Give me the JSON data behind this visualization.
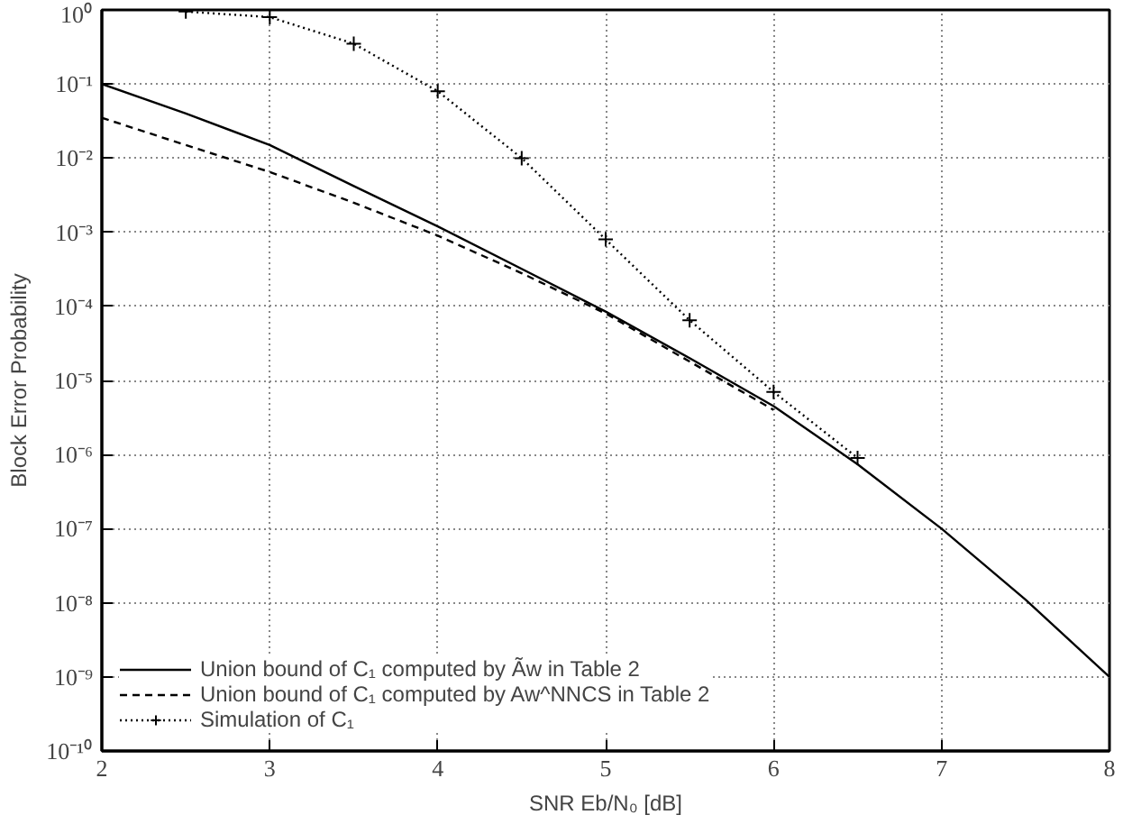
{
  "chart_data": {
    "type": "line",
    "xlabel": "SNR Eb/N₀ [dB]",
    "ylabel": "Block Error Probability",
    "log": "y",
    "grid": true,
    "legend": "bottom left",
    "xlim": [
      2,
      8
    ],
    "xticks": [
      2,
      3,
      4,
      5,
      6,
      7,
      8
    ],
    "ylim": [
      1e-10,
      1
    ],
    "yticks": [
      {
        "value": 1,
        "label": "10⁰"
      },
      {
        "value": 0.1,
        "label": "10⁻¹"
      },
      {
        "value": 0.01,
        "label": "10⁻²"
      },
      {
        "value": 0.001,
        "label": "10⁻³"
      },
      {
        "value": 0.0001,
        "label": "10⁻⁴"
      },
      {
        "value": 1e-05,
        "label": "10⁻⁵"
      },
      {
        "value": 1e-06,
        "label": "10⁻⁶"
      },
      {
        "value": 1e-07,
        "label": "10⁻⁷"
      },
      {
        "value": 1e-08,
        "label": "10⁻⁸"
      },
      {
        "value": 1e-09,
        "label": "10⁻⁹"
      },
      {
        "value": 1e-10,
        "label": "10⁻¹⁰"
      }
    ],
    "series": [
      {
        "name": "Union bound of C₁ computed by Ãw in Table 2",
        "color": "#000000",
        "line_style": "solid",
        "marker": "none",
        "x": [
          2,
          2.5,
          3,
          3.5,
          4,
          4.5,
          5,
          5.5,
          6,
          6.5,
          7,
          7.5,
          8
        ],
        "values": [
          0.1,
          0.04,
          0.015,
          0.0042,
          0.0012,
          0.00032,
          8.5e-05,
          2e-05,
          4.5e-06,
          7.4e-07,
          1e-07,
          1.1e-08,
          1e-09
        ]
      },
      {
        "name": "Union bound of C₁ computed by Aw^NNCS in Table 2",
        "color": "#000000",
        "line_style": "dashed",
        "marker": "none",
        "x": [
          2,
          2.5,
          3,
          3.5,
          4,
          4.5,
          5,
          5.5,
          6
        ],
        "values": [
          0.035,
          0.015,
          0.0065,
          0.0025,
          0.0009,
          0.00028,
          8e-05,
          1.8e-05,
          4e-06
        ]
      },
      {
        "name": "Simulation of C₁",
        "color": "#000000",
        "line_style": "dotted",
        "marker": "cross",
        "x": [
          2.5,
          3,
          3.5,
          4,
          4.5,
          5,
          5.5,
          6,
          6.5
        ],
        "values": [
          0.95,
          0.8,
          0.35,
          0.08,
          0.01,
          0.0008,
          6.5e-05,
          7e-06,
          9e-07
        ]
      }
    ]
  }
}
